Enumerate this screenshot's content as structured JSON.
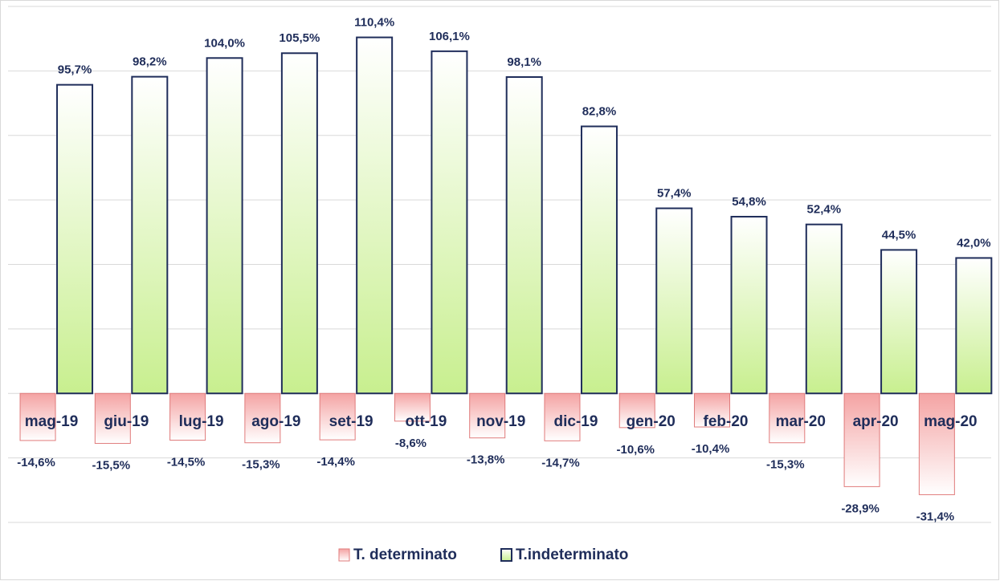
{
  "chart_data": {
    "type": "bar",
    "categories": [
      "mag-19",
      "giu-19",
      "lug-19",
      "ago-19",
      "set-19",
      "ott-19",
      "nov-19",
      "dic-19",
      "gen-20",
      "feb-20",
      "mar-20",
      "apr-20",
      "mag-20"
    ],
    "series": [
      {
        "name": "T. determinato",
        "color": "#f4a3a3",
        "edge": "#e07b7b",
        "values": [
          -14.6,
          -15.5,
          -14.5,
          -15.3,
          -14.4,
          -8.6,
          -13.8,
          -14.7,
          -10.6,
          -10.4,
          -15.3,
          -28.9,
          -31.4
        ],
        "value_labels": [
          "-14,6%",
          "-15,5%",
          "-14,5%",
          "-15,3%",
          "-14,4%",
          "-8,6%",
          "-13,8%",
          "-14,7%",
          "-10,6%",
          "-10,4%",
          "-15,3%",
          "-28,9%",
          "-31,4%"
        ]
      },
      {
        "name": "T.indeterminato",
        "color": "#c8ef8f",
        "edge": "#1f2d5a",
        "values": [
          95.7,
          98.2,
          104.0,
          105.5,
          110.4,
          106.1,
          98.1,
          82.8,
          57.4,
          54.8,
          52.4,
          44.5,
          42.0
        ],
        "value_labels": [
          "95,7%",
          "98,2%",
          "104,0%",
          "105,5%",
          "110,4%",
          "106,1%",
          "98,1%",
          "82,8%",
          "57,4%",
          "54,8%",
          "52,4%",
          "44,5%",
          "42,0%"
        ]
      }
    ],
    "ylim": [
      -40,
      120
    ],
    "yticks": [
      -40,
      -20,
      0,
      20,
      40,
      60,
      80,
      100,
      120
    ],
    "grid": true,
    "legend": "bottom"
  }
}
